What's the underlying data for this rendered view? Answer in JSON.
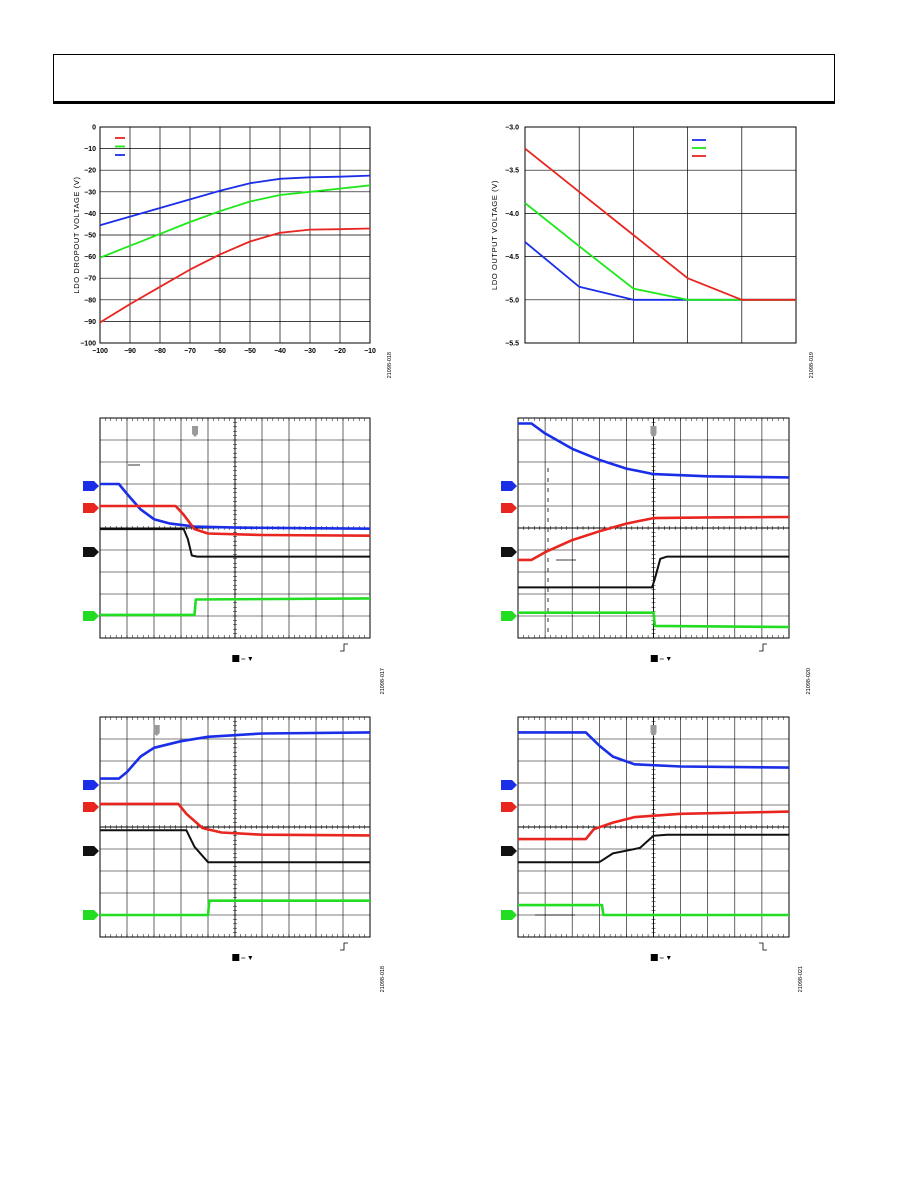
{
  "header": {
    "text": ""
  },
  "chart_data": [
    {
      "type": "line",
      "title": "",
      "xlabel": "",
      "ylabel": "LDO DROPOUT VOLTAGE (V)",
      "xlim": [
        -100,
        -10
      ],
      "ylim": [
        -100,
        0
      ],
      "xticks": [
        -100,
        -90,
        -80,
        -70,
        -60,
        -50,
        -40,
        -30,
        -20,
        -10
      ],
      "yticks": [
        0,
        -10,
        -20,
        -30,
        -40,
        -50,
        -60,
        -70,
        -80,
        -90,
        -100
      ],
      "xtick_labels": [
        "−100",
        "−90",
        "−80",
        "−70",
        "−60",
        "−50",
        "−40",
        "−30",
        "−20",
        "−10"
      ],
      "ytick_labels": [
        "0",
        "−10",
        "−20",
        "−30",
        "−40",
        "−50",
        "−60",
        "−70",
        "−80",
        "−90",
        "−100"
      ],
      "grid": true,
      "legend_position": "top-left",
      "figure_code": "21098-018",
      "series": [
        {
          "color": "#e8251f",
          "x": [
            -100,
            -90,
            -80,
            -70,
            -60,
            -50,
            -40,
            -30,
            -20,
            -10
          ],
          "y": [
            -90.5,
            -82,
            -74,
            -66,
            -59,
            -53,
            -49,
            -47.5,
            -47.3,
            -47
          ]
        },
        {
          "color": "#1ee81a",
          "x": [
            -100,
            -90,
            -80,
            -70,
            -60,
            -50,
            -40,
            -30,
            -20,
            -10
          ],
          "y": [
            -60.5,
            -55,
            -49.5,
            -44,
            -39,
            -34.5,
            -31.5,
            -30,
            -28.5,
            -27
          ]
        },
        {
          "color": "#1a2ee8",
          "x": [
            -100,
            -90,
            -80,
            -70,
            -60,
            -50,
            -40,
            -30,
            -20,
            -10
          ],
          "y": [
            -45.5,
            -41.5,
            -37.5,
            -33.5,
            -29.5,
            -26,
            -24,
            -23.3,
            -23,
            -22.5
          ]
        }
      ]
    },
    {
      "type": "line",
      "title": "",
      "xlabel": "",
      "ylabel": "LDO OUTPUT VOLTAGE (V)",
      "ylim": [
        -5.5,
        -3.0
      ],
      "yticks": [
        -3.0,
        -3.5,
        -4.0,
        -4.5,
        -5.0,
        -5.5
      ],
      "ytick_labels": [
        "−3.0",
        "−3.5",
        "−4.0",
        "−4.5",
        "−5.0",
        "−5.5"
      ],
      "xlim": [
        0,
        5
      ],
      "grid": true,
      "legend_position": "top-right",
      "figure_code": "21098-019",
      "series": [
        {
          "color": "#1a2ee8",
          "x": [
            0,
            1,
            2,
            3,
            4,
            5
          ],
          "y": [
            -4.33,
            -4.85,
            -5.0,
            -5.0,
            -5.0,
            -5.0
          ]
        },
        {
          "color": "#1ee81a",
          "x": [
            0,
            1,
            2,
            3,
            4,
            5
          ],
          "y": [
            -3.88,
            -4.38,
            -4.87,
            -5.0,
            -5.0,
            -5.0
          ]
        },
        {
          "color": "#e8251f",
          "x": [
            0,
            1,
            2,
            3,
            4,
            5
          ],
          "y": [
            -3.25,
            -3.75,
            -4.25,
            -4.75,
            -5.0,
            -5.0
          ]
        }
      ]
    }
  ],
  "scope_plots": [
    {
      "figure_code": "21098-017",
      "trigger_edge": "rising",
      "traces": [
        {
          "channel": 1,
          "color": "#1a2ee8",
          "points": [
            [
              0,
              7.0
            ],
            [
              0.7,
              7.0
            ],
            [
              1.0,
              6.55
            ],
            [
              1.5,
              5.85
            ],
            [
              2.0,
              5.4
            ],
            [
              2.6,
              5.2
            ],
            [
              3.5,
              5.07
            ],
            [
              5,
              5.02
            ],
            [
              10,
              4.97
            ]
          ]
        },
        {
          "channel": 2,
          "color": "#e8251f",
          "points": [
            [
              0,
              6.0
            ],
            [
              2.8,
              6.0
            ],
            [
              3.1,
              5.6
            ],
            [
              3.5,
              4.95
            ],
            [
              4.0,
              4.75
            ],
            [
              6,
              4.68
            ],
            [
              10,
              4.65
            ]
          ]
        },
        {
          "channel": 3,
          "color": "#111111",
          "points": [
            [
              0,
              4.95
            ],
            [
              3.1,
              4.95
            ],
            [
              3.25,
              4.5
            ],
            [
              3.4,
              3.75
            ],
            [
              3.6,
              3.7
            ],
            [
              10,
              3.7
            ]
          ]
        },
        {
          "channel": 4,
          "color": "#22dd22",
          "points": [
            [
              0,
              1.05
            ],
            [
              3.5,
              1.05
            ],
            [
              3.55,
              1.75
            ],
            [
              10,
              1.8
            ]
          ]
        }
      ]
    },
    {
      "figure_code": "21098-020",
      "trigger_edge": "rising",
      "traces": [
        {
          "channel": 1,
          "color": "#1a2ee8",
          "points": [
            [
              0,
              9.75
            ],
            [
              0.5,
              9.75
            ],
            [
              1.0,
              9.3
            ],
            [
              2,
              8.6
            ],
            [
              3,
              8.1
            ],
            [
              4,
              7.7
            ],
            [
              5,
              7.45
            ],
            [
              7,
              7.35
            ],
            [
              10,
              7.3
            ]
          ]
        },
        {
          "channel": 2,
          "color": "#e8251f",
          "points": [
            [
              0,
              3.55
            ],
            [
              0.5,
              3.55
            ],
            [
              1.0,
              3.9
            ],
            [
              2,
              4.45
            ],
            [
              3,
              4.85
            ],
            [
              4,
              5.2
            ],
            [
              5,
              5.45
            ],
            [
              7,
              5.48
            ],
            [
              10,
              5.5
            ]
          ]
        },
        {
          "channel": 3,
          "color": "#111111",
          "points": [
            [
              0,
              2.3
            ],
            [
              4.95,
              2.3
            ],
            [
              5.05,
              2.7
            ],
            [
              5.25,
              3.6
            ],
            [
              5.5,
              3.7
            ],
            [
              10,
              3.7
            ]
          ]
        },
        {
          "channel": 4,
          "color": "#22dd22",
          "points": [
            [
              0,
              1.15
            ],
            [
              5.0,
              1.15
            ],
            [
              5.05,
              0.55
            ],
            [
              10,
              0.5
            ]
          ]
        }
      ]
    },
    {
      "figure_code": "21098-018",
      "trigger_edge": "rising",
      "traces": [
        {
          "channel": 1,
          "color": "#1a2ee8",
          "points": [
            [
              0,
              7.2
            ],
            [
              0.7,
              7.2
            ],
            [
              1.0,
              7.5
            ],
            [
              1.5,
              8.2
            ],
            [
              2.0,
              8.6
            ],
            [
              3,
              8.9
            ],
            [
              4,
              9.1
            ],
            [
              6,
              9.25
            ],
            [
              10,
              9.3
            ]
          ]
        },
        {
          "channel": 2,
          "color": "#e8251f",
          "points": [
            [
              0,
              6.05
            ],
            [
              2.9,
              6.05
            ],
            [
              3.2,
              5.6
            ],
            [
              3.8,
              4.95
            ],
            [
              4.5,
              4.75
            ],
            [
              6,
              4.65
            ],
            [
              10,
              4.62
            ]
          ]
        },
        {
          "channel": 3,
          "color": "#111111",
          "points": [
            [
              0,
              4.85
            ],
            [
              3.2,
              4.85
            ],
            [
              3.5,
              4.1
            ],
            [
              4.0,
              3.4
            ],
            [
              10,
              3.4
            ]
          ]
        },
        {
          "channel": 4,
          "color": "#22dd22",
          "points": [
            [
              0,
              1.0
            ],
            [
              4.0,
              1.0
            ],
            [
              4.05,
              1.65
            ],
            [
              10,
              1.65
            ]
          ]
        }
      ]
    },
    {
      "figure_code": "21098-021",
      "trigger_edge": "falling",
      "traces": [
        {
          "channel": 1,
          "color": "#1a2ee8",
          "points": [
            [
              0,
              9.3
            ],
            [
              2.5,
              9.3
            ],
            [
              3.0,
              8.7
            ],
            [
              3.5,
              8.2
            ],
            [
              4.3,
              7.85
            ],
            [
              6,
              7.75
            ],
            [
              10,
              7.7
            ]
          ]
        },
        {
          "channel": 2,
          "color": "#e8251f",
          "points": [
            [
              0,
              4.45
            ],
            [
              2.5,
              4.45
            ],
            [
              2.8,
              4.9
            ],
            [
              3.5,
              5.2
            ],
            [
              4.3,
              5.45
            ],
            [
              6,
              5.6
            ],
            [
              10,
              5.7
            ]
          ]
        },
        {
          "channel": 3,
          "color": "#111111",
          "points": [
            [
              0,
              3.4
            ],
            [
              3.0,
              3.4
            ],
            [
              3.5,
              3.8
            ],
            [
              4.5,
              4.05
            ],
            [
              5.0,
              4.6
            ],
            [
              5.5,
              4.65
            ],
            [
              10,
              4.65
            ]
          ]
        },
        {
          "channel": 4,
          "color": "#22dd22",
          "points": [
            [
              0,
              1.45
            ],
            [
              3.1,
              1.45
            ],
            [
              3.15,
              1.0
            ],
            [
              10,
              1.0
            ]
          ]
        }
      ]
    }
  ]
}
